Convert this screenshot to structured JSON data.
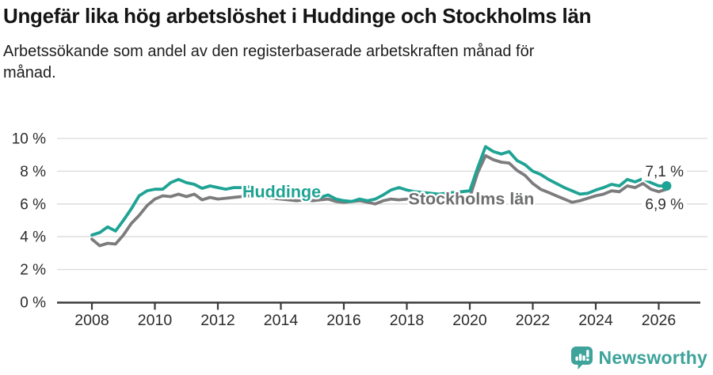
{
  "header": {
    "title": "Ungefär lika hög arbetslöshet i Huddinge och Stockholms län",
    "subtitle_line1": "Arbetssökande som andel av den registerbaserade arbetskraften månad för",
    "subtitle_line2": "månad."
  },
  "chart_data": {
    "type": "line",
    "title": "Ungefär lika hög arbetslöshet i Huddinge och Stockholms län",
    "xlabel": "",
    "ylabel": "Arbetssökande som andel av den registerbaserade arbetskraften",
    "unit": "%",
    "ylim": [
      0,
      10
    ],
    "xlim": [
      2006.9,
      2027.5
    ],
    "grid": "horizontal",
    "legend_position": "inline-labels",
    "yticks": [
      {
        "value": 0,
        "label": "0 %"
      },
      {
        "value": 2,
        "label": "2 %"
      },
      {
        "value": 4,
        "label": "4 %"
      },
      {
        "value": 6,
        "label": "6 %"
      },
      {
        "value": 8,
        "label": "8 %"
      },
      {
        "value": 10,
        "label": "10 %"
      }
    ],
    "xticks": [
      {
        "value": 2008,
        "label": "2008"
      },
      {
        "value": 2010,
        "label": "2010"
      },
      {
        "value": 2012,
        "label": "2012"
      },
      {
        "value": 2014,
        "label": "2014"
      },
      {
        "value": 2016,
        "label": "2016"
      },
      {
        "value": 2018,
        "label": "2018"
      },
      {
        "value": 2020,
        "label": "2020"
      },
      {
        "value": 2022,
        "label": "2022"
      },
      {
        "value": 2024,
        "label": "2024"
      },
      {
        "value": 2026,
        "label": "2026"
      }
    ],
    "x": [
      2008.0,
      2008.25,
      2008.5,
      2008.75,
      2009.0,
      2009.25,
      2009.5,
      2009.75,
      2010.0,
      2010.25,
      2010.5,
      2010.75,
      2011.0,
      2011.25,
      2011.5,
      2011.75,
      2012.0,
      2012.25,
      2012.5,
      2012.75,
      2013.0,
      2013.25,
      2013.5,
      2013.75,
      2014.0,
      2014.25,
      2014.5,
      2014.75,
      2015.0,
      2015.25,
      2015.5,
      2015.75,
      2016.0,
      2016.25,
      2016.5,
      2016.75,
      2017.0,
      2017.25,
      2017.5,
      2017.75,
      2018.0,
      2018.25,
      2018.5,
      2018.75,
      2019.0,
      2019.25,
      2019.5,
      2019.75,
      2020.0,
      2020.25,
      2020.5,
      2020.75,
      2021.0,
      2021.25,
      2021.5,
      2021.75,
      2022.0,
      2022.25,
      2022.5,
      2022.75,
      2023.0,
      2023.25,
      2023.5,
      2023.75,
      2024.0,
      2024.25,
      2024.5,
      2024.75,
      2025.0,
      2025.25,
      2025.5,
      2025.75,
      2026.0,
      2026.25
    ],
    "series": [
      {
        "name": "Stockholms län",
        "color": "#7c7c7e",
        "label_color": "#6d6e70",
        "label_anchor": {
          "x": 2018.05,
          "y": 6.33
        },
        "end_label": {
          "text": "6,9 %",
          "at_value": 6
        },
        "end_dot": false,
        "last_value": 6.9,
        "values": [
          3.85,
          3.45,
          3.6,
          3.55,
          4.1,
          4.8,
          5.3,
          5.9,
          6.3,
          6.5,
          6.45,
          6.6,
          6.45,
          6.6,
          6.25,
          6.4,
          6.3,
          6.35,
          6.4,
          6.45,
          6.5,
          6.45,
          6.4,
          6.35,
          6.3,
          6.25,
          6.2,
          6.25,
          6.2,
          6.25,
          6.3,
          6.15,
          6.1,
          6.15,
          6.2,
          6.1,
          6.0,
          6.2,
          6.3,
          6.25,
          6.3,
          6.25,
          6.2,
          6.25,
          6.2,
          6.25,
          6.3,
          6.3,
          6.4,
          7.9,
          8.95,
          8.7,
          8.55,
          8.5,
          8.05,
          7.75,
          7.25,
          6.9,
          6.7,
          6.5,
          6.3,
          6.1,
          6.2,
          6.35,
          6.5,
          6.6,
          6.8,
          6.75,
          7.1,
          7.0,
          7.25,
          6.9,
          6.75,
          6.9
        ]
      },
      {
        "name": "Huddinge",
        "color": "#1ea394",
        "label_color": "#1ea394",
        "label_anchor": {
          "x": 2012.78,
          "y": 6.76
        },
        "end_label": {
          "text": "7,1 %",
          "at_value": 8
        },
        "end_dot": true,
        "last_value": 7.1,
        "values": [
          4.1,
          4.25,
          4.6,
          4.35,
          5.0,
          5.7,
          6.5,
          6.8,
          6.9,
          6.9,
          7.3,
          7.5,
          7.3,
          7.2,
          6.95,
          7.1,
          7.0,
          6.9,
          7.0,
          7.0,
          7.05,
          6.95,
          6.85,
          6.75,
          6.7,
          6.6,
          6.55,
          6.5,
          6.45,
          6.4,
          6.55,
          6.3,
          6.2,
          6.15,
          6.3,
          6.2,
          6.3,
          6.55,
          6.85,
          7.0,
          6.85,
          6.75,
          6.7,
          6.65,
          6.6,
          6.65,
          6.7,
          6.75,
          6.8,
          8.2,
          9.5,
          9.2,
          9.05,
          9.2,
          8.65,
          8.4,
          8.0,
          7.8,
          7.5,
          7.25,
          7.0,
          6.8,
          6.6,
          6.65,
          6.85,
          7.0,
          7.2,
          7.1,
          7.5,
          7.35,
          7.55,
          7.3,
          7.1,
          7.1
        ]
      }
    ],
    "style": {
      "grid_color": "#dadada",
      "axis_color": "#3a3a3a",
      "tick_text_color": "#2b2b2b",
      "end_label_color": "#2e2e2e"
    }
  },
  "footer": {
    "brand": "Newsworthy",
    "brand_color": "#3da39b"
  }
}
